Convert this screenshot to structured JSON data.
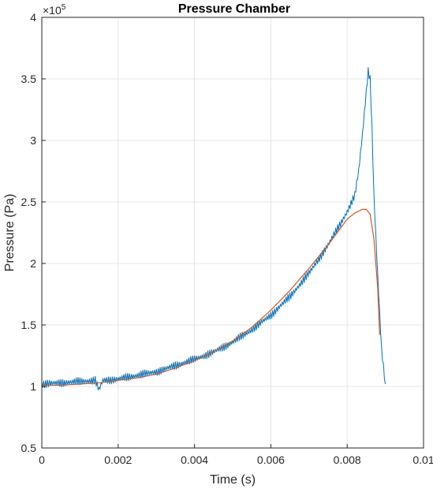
{
  "chart_data": {
    "type": "line",
    "title": "Pressure Chamber",
    "xlabel": "Time (s)",
    "ylabel": "Pressure (Pa)",
    "xlim": [
      0,
      0.01
    ],
    "ylim": [
      0.5,
      4
    ],
    "y_exponent_label": "×10",
    "y_exponent_power": "5",
    "grid": true,
    "x_ticks": [
      {
        "value": 0,
        "label": "0"
      },
      {
        "value": 0.002,
        "label": "0.002"
      },
      {
        "value": 0.004,
        "label": "0.004"
      },
      {
        "value": 0.006,
        "label": "0.006"
      },
      {
        "value": 0.008,
        "label": "0.008"
      },
      {
        "value": 0.01,
        "label": "0.01"
      }
    ],
    "y_ticks": [
      {
        "value": 0.5,
        "label": "0.5"
      },
      {
        "value": 1,
        "label": "1"
      },
      {
        "value": 1.5,
        "label": "1.5"
      },
      {
        "value": 2,
        "label": "2"
      },
      {
        "value": 2.5,
        "label": "2.5"
      },
      {
        "value": 3,
        "label": "3"
      },
      {
        "value": 3.5,
        "label": "3.5"
      },
      {
        "value": 4,
        "label": "4"
      }
    ],
    "series": [
      {
        "color": "#0072BD",
        "noisy": true,
        "x": [
          0,
          0.0005,
          0.001,
          0.0014,
          0.0015,
          0.0016,
          0.002,
          0.0025,
          0.003,
          0.0035,
          0.004,
          0.0045,
          0.005,
          0.0055,
          0.006,
          0.0065,
          0.007,
          0.0075,
          0.008,
          0.0082,
          0.0083,
          0.0084,
          0.0085,
          0.00855,
          0.0086,
          0.00865,
          0.0087,
          0.0088,
          0.0089,
          0.009
        ],
        "y": [
          1.02,
          1.03,
          1.04,
          1.05,
          0.97,
          1.05,
          1.06,
          1.09,
          1.12,
          1.17,
          1.22,
          1.28,
          1.36,
          1.46,
          1.58,
          1.73,
          1.92,
          2.15,
          2.42,
          2.55,
          2.75,
          3.05,
          3.4,
          3.57,
          3.5,
          3.1,
          2.55,
          1.9,
          1.3,
          1.02
        ]
      },
      {
        "color": "#D95319",
        "noisy": false,
        "x": [
          0,
          0.0005,
          0.001,
          0.0015,
          0.002,
          0.0025,
          0.003,
          0.0035,
          0.004,
          0.0045,
          0.005,
          0.0055,
          0.006,
          0.0065,
          0.007,
          0.0075,
          0.008,
          0.0082,
          0.0084,
          0.0085,
          0.0086,
          0.0087,
          0.0088,
          0.00885
        ],
        "y": [
          1.01,
          1.01,
          1.02,
          1.03,
          1.05,
          1.07,
          1.1,
          1.15,
          1.21,
          1.28,
          1.37,
          1.48,
          1.62,
          1.78,
          1.96,
          2.15,
          2.36,
          2.41,
          2.44,
          2.44,
          2.4,
          2.2,
          1.8,
          1.42
        ]
      }
    ]
  }
}
